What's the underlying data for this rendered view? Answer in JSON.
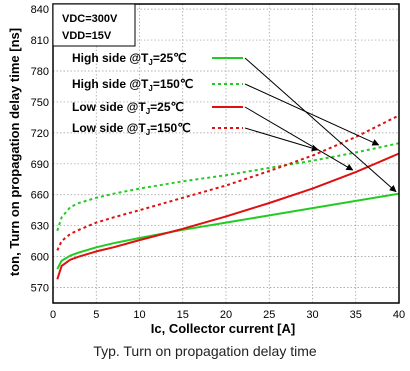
{
  "chart_data": {
    "type": "line",
    "title": "",
    "caption": "Typ. Turn on propagation delay time",
    "xlabel": "Ic, Collector current [A]",
    "ylabel": "ton, Turn on propagation delay time [ns]",
    "xlim": [
      0,
      40
    ],
    "ylim": [
      555,
      845
    ],
    "xticks": [
      0,
      5,
      10,
      15,
      20,
      25,
      30,
      35,
      40
    ],
    "yticks": [
      570,
      600,
      630,
      660,
      690,
      720,
      750,
      780,
      810,
      840
    ],
    "grid": true,
    "conditions": [
      "VDC=300V",
      "VDD=15V"
    ],
    "legend_position": "upper-left (inside plot)",
    "series": [
      {
        "name": "High side @TJ=25℃",
        "color": "#22cc22",
        "dash": "solid",
        "x": [
          0.5,
          1,
          2,
          3,
          5,
          7,
          10,
          15,
          20,
          25,
          30,
          35,
          40
        ],
        "y": [
          588,
          596,
          601,
          604,
          609,
          613,
          618,
          626,
          633,
          640,
          647,
          654,
          661
        ]
      },
      {
        "name": "High side @TJ=150℃",
        "color": "#22cc22",
        "dash": "dotted",
        "x": [
          0.5,
          1,
          2,
          3,
          5,
          7,
          10,
          15,
          20,
          25,
          30,
          35,
          40
        ],
        "y": [
          625,
          638,
          648,
          652,
          657,
          661,
          666,
          673,
          679,
          686,
          693,
          701,
          710
        ]
      },
      {
        "name": "Low side @TJ=25℃",
        "color": "#dd1111",
        "dash": "solid",
        "x": [
          0.5,
          1,
          2,
          3,
          5,
          7,
          10,
          15,
          20,
          25,
          30,
          35,
          40
        ],
        "y": [
          578,
          591,
          597,
          600,
          605,
          609,
          616,
          627,
          639,
          652,
          666,
          682,
          700
        ]
      },
      {
        "name": "Low side @TJ=150℃",
        "color": "#dd1111",
        "dash": "dotted",
        "x": [
          0.5,
          1,
          2,
          3,
          5,
          7,
          10,
          15,
          20,
          25,
          30,
          35,
          40
        ],
        "y": [
          606,
          615,
          622,
          626,
          633,
          638,
          645,
          657,
          669,
          683,
          698,
          716,
          737
        ]
      }
    ],
    "annotations": [
      {
        "text": "→ arrows from legend entries to curves",
        "type": "leader-lines"
      }
    ]
  },
  "legend_labels": [
    {
      "pre": "High side @T",
      "sub": "J",
      "post": "=25℃"
    },
    {
      "pre": "High side @T",
      "sub": "J",
      "post": "=150℃"
    },
    {
      "pre": "Low side @T",
      "sub": "J",
      "post": "=25℃"
    },
    {
      "pre": "Low side @T",
      "sub": "J",
      "post": "=150℃"
    }
  ],
  "arrow_targets_x": [
    40,
    38,
    35,
    31
  ]
}
